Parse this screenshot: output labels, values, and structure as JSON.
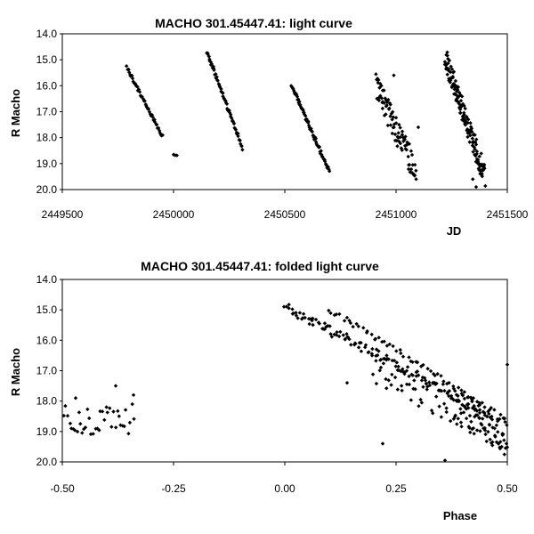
{
  "chart_data": [
    {
      "type": "scatter",
      "title": "MACHO 301.45447.41: light curve",
      "xlabel": "JD",
      "ylabel": "R Macho",
      "xlim": [
        2449500,
        2451500
      ],
      "ylim": [
        14.0,
        20.0
      ],
      "y_inverted": true,
      "x_ticks": [
        2449500,
        2450000,
        2450500,
        2451000,
        2451500
      ],
      "x_tick_labels": [
        "2449500",
        "2450000",
        "2450500",
        "2451000",
        "2451500"
      ],
      "y_ticks": [
        14,
        15,
        16,
        17,
        18,
        19,
        20
      ],
      "y_tick_labels": [
        "14.0",
        "15.0",
        "16.0",
        "17.0",
        "18.0",
        "19.0",
        "20.0"
      ],
      "grid": false,
      "marker": "diamond",
      "segments": [
        {
          "x_start": 2449790,
          "x_end": 2449950,
          "y_start": 15.3,
          "y_end": 17.95,
          "n": 45,
          "scatter": 0.06
        },
        {
          "x_start": 2450000,
          "x_end": 2450015,
          "y_start": 18.65,
          "y_end": 18.7,
          "n": 3,
          "scatter": 0.02
        },
        {
          "x_start": 2450150,
          "x_end": 2450310,
          "y_start": 14.7,
          "y_end": 18.4,
          "n": 60,
          "scatter": 0.07
        },
        {
          "x_start": 2450530,
          "x_end": 2450700,
          "y_start": 16.0,
          "y_end": 19.3,
          "n": 70,
          "scatter": 0.08
        },
        {
          "x_start": 2450910,
          "x_end": 2451090,
          "y_start": 16.1,
          "y_end": 19.3,
          "n": 90,
          "scatter": 0.55
        },
        {
          "x_start": 2451220,
          "x_end": 2451400,
          "y_start": 14.9,
          "y_end": 19.5,
          "n": 150,
          "scatter": 0.45
        }
      ],
      "extra_points": [
        {
          "x": 2450990,
          "y": 15.6
        },
        {
          "x": 2451360,
          "y": 19.9
        },
        {
          "x": 2451345,
          "y": 19.6
        },
        {
          "x": 2451100,
          "y": 17.6
        }
      ]
    },
    {
      "type": "scatter",
      "title": "MACHO 301.45447.41: folded light curve",
      "xlabel": "Phase",
      "ylabel": "R Macho",
      "xlim": [
        -0.5,
        0.5
      ],
      "ylim": [
        14.0,
        20.0
      ],
      "y_inverted": true,
      "x_ticks": [
        -0.5,
        -0.25,
        0.0,
        0.25,
        0.5
      ],
      "x_tick_labels": [
        "-0.50",
        "-0.25",
        "0.00",
        "0.25",
        "0.50"
      ],
      "y_ticks": [
        14,
        15,
        16,
        17,
        18,
        19,
        20
      ],
      "y_tick_labels": [
        "14.0",
        "15.0",
        "16.0",
        "17.0",
        "18.0",
        "19.0",
        "20.0"
      ],
      "grid": false,
      "marker": "diamond",
      "segments": [
        {
          "x_start": 0.0,
          "x_end": 0.5,
          "y_start": 14.9,
          "y_end": 18.7,
          "n": 150,
          "scatter": 0.15
        },
        {
          "x_start": 0.1,
          "x_end": 0.47,
          "y_start": 15.0,
          "y_end": 18.3,
          "n": 60,
          "scatter": 0.1
        },
        {
          "x_start": 0.2,
          "x_end": 0.5,
          "y_start": 17.0,
          "y_end": 19.2,
          "n": 70,
          "scatter": 0.45
        },
        {
          "x_start": 0.38,
          "x_end": 0.5,
          "y_start": 18.2,
          "y_end": 19.5,
          "n": 50,
          "scatter": 0.35
        },
        {
          "x_start": -0.5,
          "x_end": -0.34,
          "y_start": 18.6,
          "y_end": 18.6,
          "n": 40,
          "scatter": 0.5
        }
      ],
      "extra_points": [
        {
          "x": 0.36,
          "y": 19.95
        },
        {
          "x": 0.5,
          "y": 16.8
        },
        {
          "x": 0.14,
          "y": 17.4
        },
        {
          "x": 0.22,
          "y": 19.4
        },
        {
          "x": -0.47,
          "y": 17.9
        },
        {
          "x": -0.38,
          "y": 17.5
        },
        {
          "x": -0.34,
          "y": 17.8
        }
      ]
    }
  ]
}
